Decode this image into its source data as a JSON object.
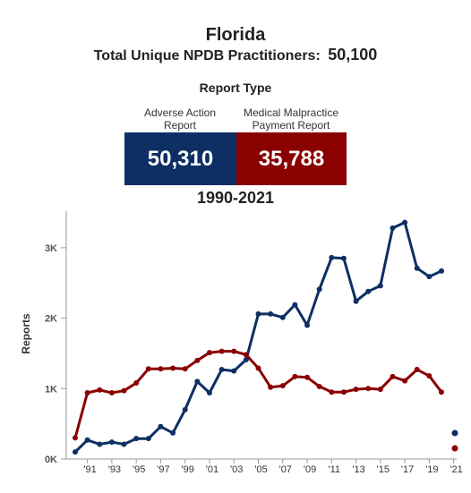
{
  "header": {
    "title": "Florida",
    "subtitle_label": "Total Unique NPDB Practitioners:",
    "subtitle_value": "50,100",
    "report_type_label": "Report Type",
    "period": "1990-2021"
  },
  "report_types": [
    {
      "label_line1": "Adverse Action",
      "label_line2": "Report",
      "value": "50,310",
      "color": "#0d2f63"
    },
    {
      "label_line1": "Medical Malpractice",
      "label_line2": "Payment Report",
      "value": "35,788",
      "color": "#8b0000"
    }
  ],
  "chart_data": {
    "type": "line",
    "ylabel": "Reports",
    "xlabel": "",
    "ylim": [
      0,
      3500
    ],
    "yticks": [
      {
        "value": 0,
        "label": "0K"
      },
      {
        "value": 1000,
        "label": "1K"
      },
      {
        "value": 2000,
        "label": "2K"
      },
      {
        "value": 3000,
        "label": "3K"
      }
    ],
    "x": [
      1990,
      1991,
      1992,
      1993,
      1994,
      1995,
      1996,
      1997,
      1998,
      1999,
      2000,
      2001,
      2002,
      2003,
      2004,
      2005,
      2006,
      2007,
      2008,
      2009,
      2010,
      2011,
      2012,
      2013,
      2014,
      2015,
      2016,
      2017,
      2018,
      2019,
      2020
    ],
    "xticks": [
      {
        "value": 1991,
        "label": "'91"
      },
      {
        "value": 1993,
        "label": "'93"
      },
      {
        "value": 1995,
        "label": "'95"
      },
      {
        "value": 1997,
        "label": "'97"
      },
      {
        "value": 1999,
        "label": "'99"
      },
      {
        "value": 2001,
        "label": "'01"
      },
      {
        "value": 2003,
        "label": "'03"
      },
      {
        "value": 2005,
        "label": "'05"
      },
      {
        "value": 2007,
        "label": "'07"
      },
      {
        "value": 2009,
        "label": "'09"
      },
      {
        "value": 2011,
        "label": "'11"
      },
      {
        "value": 2013,
        "label": "'13"
      },
      {
        "value": 2015,
        "label": "'15"
      },
      {
        "value": 2017,
        "label": "'17"
      },
      {
        "value": 2019,
        "label": "'19"
      },
      {
        "value": 2021,
        "label": "'21"
      }
    ],
    "series": [
      {
        "color": "#0d2f63",
        "values": [
          100,
          270,
          210,
          240,
          210,
          290,
          290,
          460,
          370,
          700,
          1100,
          940,
          1270,
          1250,
          1410,
          2060,
          2060,
          2010,
          2190,
          1900,
          2410,
          2860,
          2850,
          2240,
          2380,
          2460,
          3280,
          3360,
          2710,
          2590,
          2670
        ]
      },
      {
        "color": "#8b0000",
        "values": [
          300,
          940,
          980,
          940,
          970,
          1080,
          1280,
          1280,
          1290,
          1280,
          1400,
          1510,
          1530,
          1530,
          1480,
          1290,
          1020,
          1040,
          1170,
          1160,
          1030,
          950,
          950,
          990,
          1000,
          990,
          1170,
          1110,
          1270,
          1180,
          950
        ]
      }
    ]
  }
}
